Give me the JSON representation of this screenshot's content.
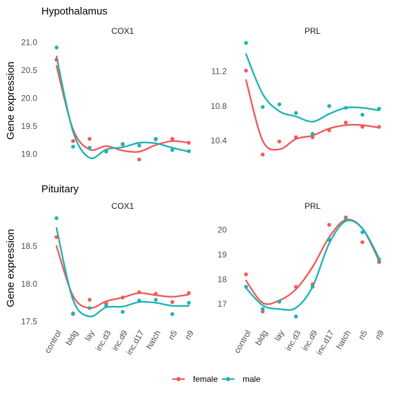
{
  "figure": {
    "section_titles": [
      "Hypothalamus",
      "Pituitary"
    ],
    "ylabel": "Gene expression",
    "legend": {
      "items": [
        {
          "label": "female",
          "color": "#F05A5A"
        },
        {
          "label": "male",
          "color": "#1FB3B5"
        }
      ]
    }
  },
  "chart_data": [
    {
      "type": "scatter",
      "section": "Hypothalamus",
      "facet_title": "COX1",
      "categories": [
        "control",
        "bldg",
        "lay",
        "inc.d3",
        "inc.d9",
        "inc.d17",
        "hatch",
        "n5",
        "n9"
      ],
      "ylim": [
        18.88,
        21.07
      ],
      "yticks": [
        19.0,
        19.5,
        20.0,
        20.5,
        21.0
      ],
      "ytick_labels": [
        "19.0",
        "19.5",
        "20.0",
        "20.5",
        "21.0"
      ],
      "show_x_labels": false,
      "series": [
        {
          "name": "female",
          "color": "#F05A5A",
          "values": [
            20.69,
            19.23,
            19.27,
            19.06,
            19.17,
            18.9,
            19.26,
            19.27,
            19.2
          ],
          "smooth": [
            20.58,
            19.44,
            19.08,
            19.14,
            19.06,
            19.04,
            19.16,
            19.23,
            19.2
          ]
        },
        {
          "name": "male",
          "color": "#1FB3B5",
          "values": [
            20.91,
            19.13,
            19.11,
            19.04,
            19.18,
            19.15,
            19.27,
            19.07,
            19.05
          ],
          "smooth": [
            20.75,
            19.4,
            18.93,
            19.08,
            19.12,
            19.2,
            19.19,
            19.11,
            19.04
          ]
        }
      ]
    },
    {
      "type": "scatter",
      "section": "Hypothalamus",
      "facet_title": "PRL",
      "categories": [
        "control",
        "bldg",
        "lay",
        "inc.d3",
        "inc.d9",
        "inc.d17",
        "hatch",
        "n5",
        "n9"
      ],
      "ylim": [
        10.17,
        11.58
      ],
      "yticks": [
        10.4,
        10.8,
        11.2
      ],
      "ytick_labels": [
        "10.4",
        "10.8",
        "11.2"
      ],
      "show_x_labels": false,
      "series": [
        {
          "name": "female",
          "color": "#F05A5A",
          "values": [
            11.21,
            10.24,
            10.39,
            10.44,
            10.44,
            10.52,
            10.61,
            10.56,
            10.56
          ],
          "smooth": [
            11.1,
            10.4,
            10.3,
            10.42,
            10.46,
            10.54,
            10.58,
            10.58,
            10.55
          ]
        },
        {
          "name": "male",
          "color": "#1FB3B5",
          "values": [
            11.53,
            10.79,
            10.82,
            10.72,
            10.48,
            10.8,
            10.78,
            10.7,
            10.77
          ],
          "smooth": [
            11.4,
            10.94,
            10.74,
            10.68,
            10.62,
            10.71,
            10.78,
            10.78,
            10.75
          ]
        }
      ]
    },
    {
      "type": "scatter",
      "section": "Pituitary",
      "facet_title": "COX1",
      "categories": [
        "control",
        "bldg",
        "lay",
        "inc.d3",
        "inc.d9",
        "inc.d17",
        "hatch",
        "n5",
        "n9"
      ],
      "ylim": [
        17.47,
        18.93
      ],
      "yticks": [
        17.5,
        18.0,
        18.5
      ],
      "ytick_labels": [
        "17.5",
        "18.0",
        "18.5"
      ],
      "show_x_labels": true,
      "series": [
        {
          "name": "female",
          "color": "#F05A5A",
          "values": [
            18.62,
            17.61,
            17.79,
            17.74,
            17.82,
            17.89,
            17.87,
            17.76,
            17.88
          ],
          "smooth": [
            18.5,
            17.84,
            17.68,
            17.77,
            17.82,
            17.88,
            17.85,
            17.83,
            17.86
          ]
        },
        {
          "name": "male",
          "color": "#1FB3B5",
          "values": [
            18.87,
            17.6,
            17.68,
            17.71,
            17.63,
            17.78,
            17.79,
            17.6,
            17.75
          ],
          "smooth": [
            18.74,
            17.79,
            17.57,
            17.69,
            17.7,
            17.76,
            17.75,
            17.71,
            17.71
          ]
        }
      ]
    },
    {
      "type": "scatter",
      "section": "Pituitary",
      "facet_title": "PRL",
      "categories": [
        "control",
        "bldg",
        "lay",
        "inc.d3",
        "inc.d9",
        "inc.d17",
        "hatch",
        "n5",
        "n9"
      ],
      "ylim": [
        16.2,
        20.65
      ],
      "yticks": [
        17,
        18,
        19,
        20
      ],
      "ytick_labels": [
        "17",
        "18",
        "19",
        "20"
      ],
      "show_x_labels": true,
      "series": [
        {
          "name": "female",
          "color": "#F05A5A",
          "values": [
            18.2,
            16.7,
            17.1,
            17.7,
            17.8,
            20.2,
            20.5,
            19.5,
            18.7
          ],
          "smooth": [
            17.95,
            17.05,
            17.15,
            17.6,
            18.5,
            19.7,
            20.4,
            20.05,
            18.75
          ]
        },
        {
          "name": "male",
          "color": "#1FB3B5",
          "values": [
            17.7,
            16.8,
            17.1,
            16.5,
            17.7,
            19.6,
            20.4,
            19.9,
            18.8
          ],
          "smooth": [
            17.65,
            16.95,
            16.8,
            16.85,
            17.7,
            19.45,
            20.35,
            20.05,
            18.85
          ]
        }
      ]
    }
  ]
}
